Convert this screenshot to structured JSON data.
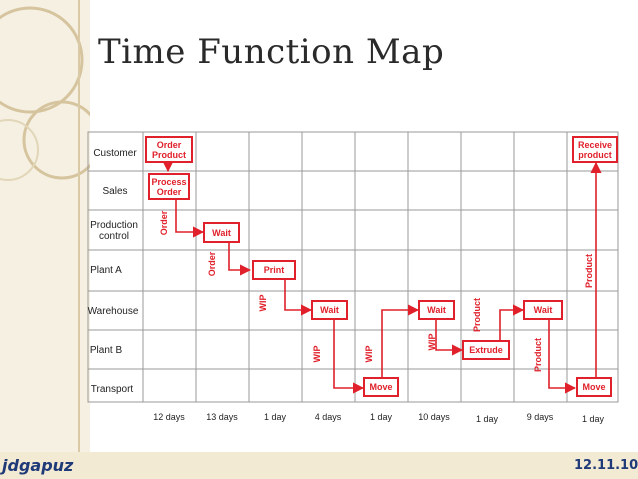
{
  "title": "Time Function Map",
  "footer": {
    "author": "jdgapuz",
    "date": "12.11.10"
  },
  "roles": [
    "Customer",
    "Sales",
    "Production control",
    "Plant A",
    "Warehouse",
    "Plant B",
    "Transport"
  ],
  "durations": [
    "12 days",
    "13 days",
    "1 day",
    "4 days",
    "1 day",
    "10 days",
    "1 day",
    "9 days",
    "1 day"
  ],
  "steps": {
    "order_product": "Order Product",
    "process_order": "Process Order",
    "wait1": "Wait",
    "print": "Print",
    "wait2": "Wait",
    "wait3": "Wait",
    "wait4": "Wait",
    "extrude": "Extrude",
    "move1": "Move",
    "move2": "Move",
    "receive_product": "Receive product"
  },
  "flow_labels": {
    "order1": "Order",
    "order2": "Order",
    "wip1": "WIP",
    "wip2": "WIP",
    "wip3": "WIP",
    "wip4": "WIP",
    "product1": "Product",
    "product2": "Product",
    "product3": "Product"
  },
  "colors": {
    "accent": "#e0202a",
    "footer": "#1f3a78"
  }
}
